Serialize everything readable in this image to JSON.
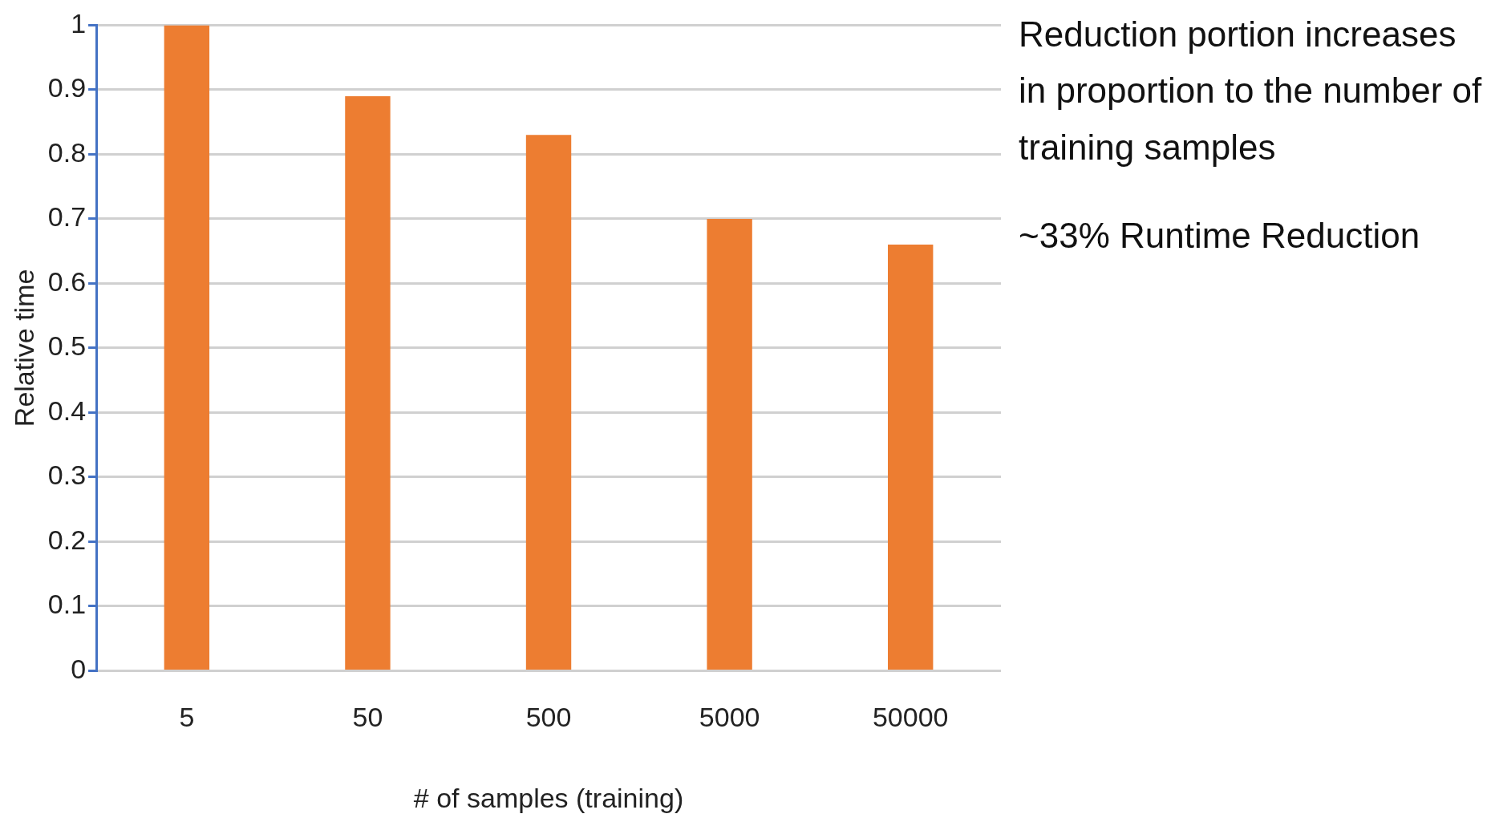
{
  "chart_data": {
    "type": "bar",
    "xlabel": "# of samples (training)",
    "ylabel": "Relative time",
    "categories": [
      "5",
      "50",
      "500",
      "5000",
      "50000"
    ],
    "values": [
      1,
      0.89,
      0.83,
      0.7,
      0.66
    ],
    "color": "#ed7d31",
    "ylim": [
      0,
      1
    ],
    "yticks": [
      0,
      0.1,
      0.2,
      0.3,
      0.4,
      0.5,
      0.6,
      0.7,
      0.8,
      0.9,
      1
    ],
    "grid": "y",
    "legend": false,
    "annotations": [
      "Reduction portion increases in proportion to the number of training samples",
      "~33% Runtime Reduction"
    ]
  }
}
